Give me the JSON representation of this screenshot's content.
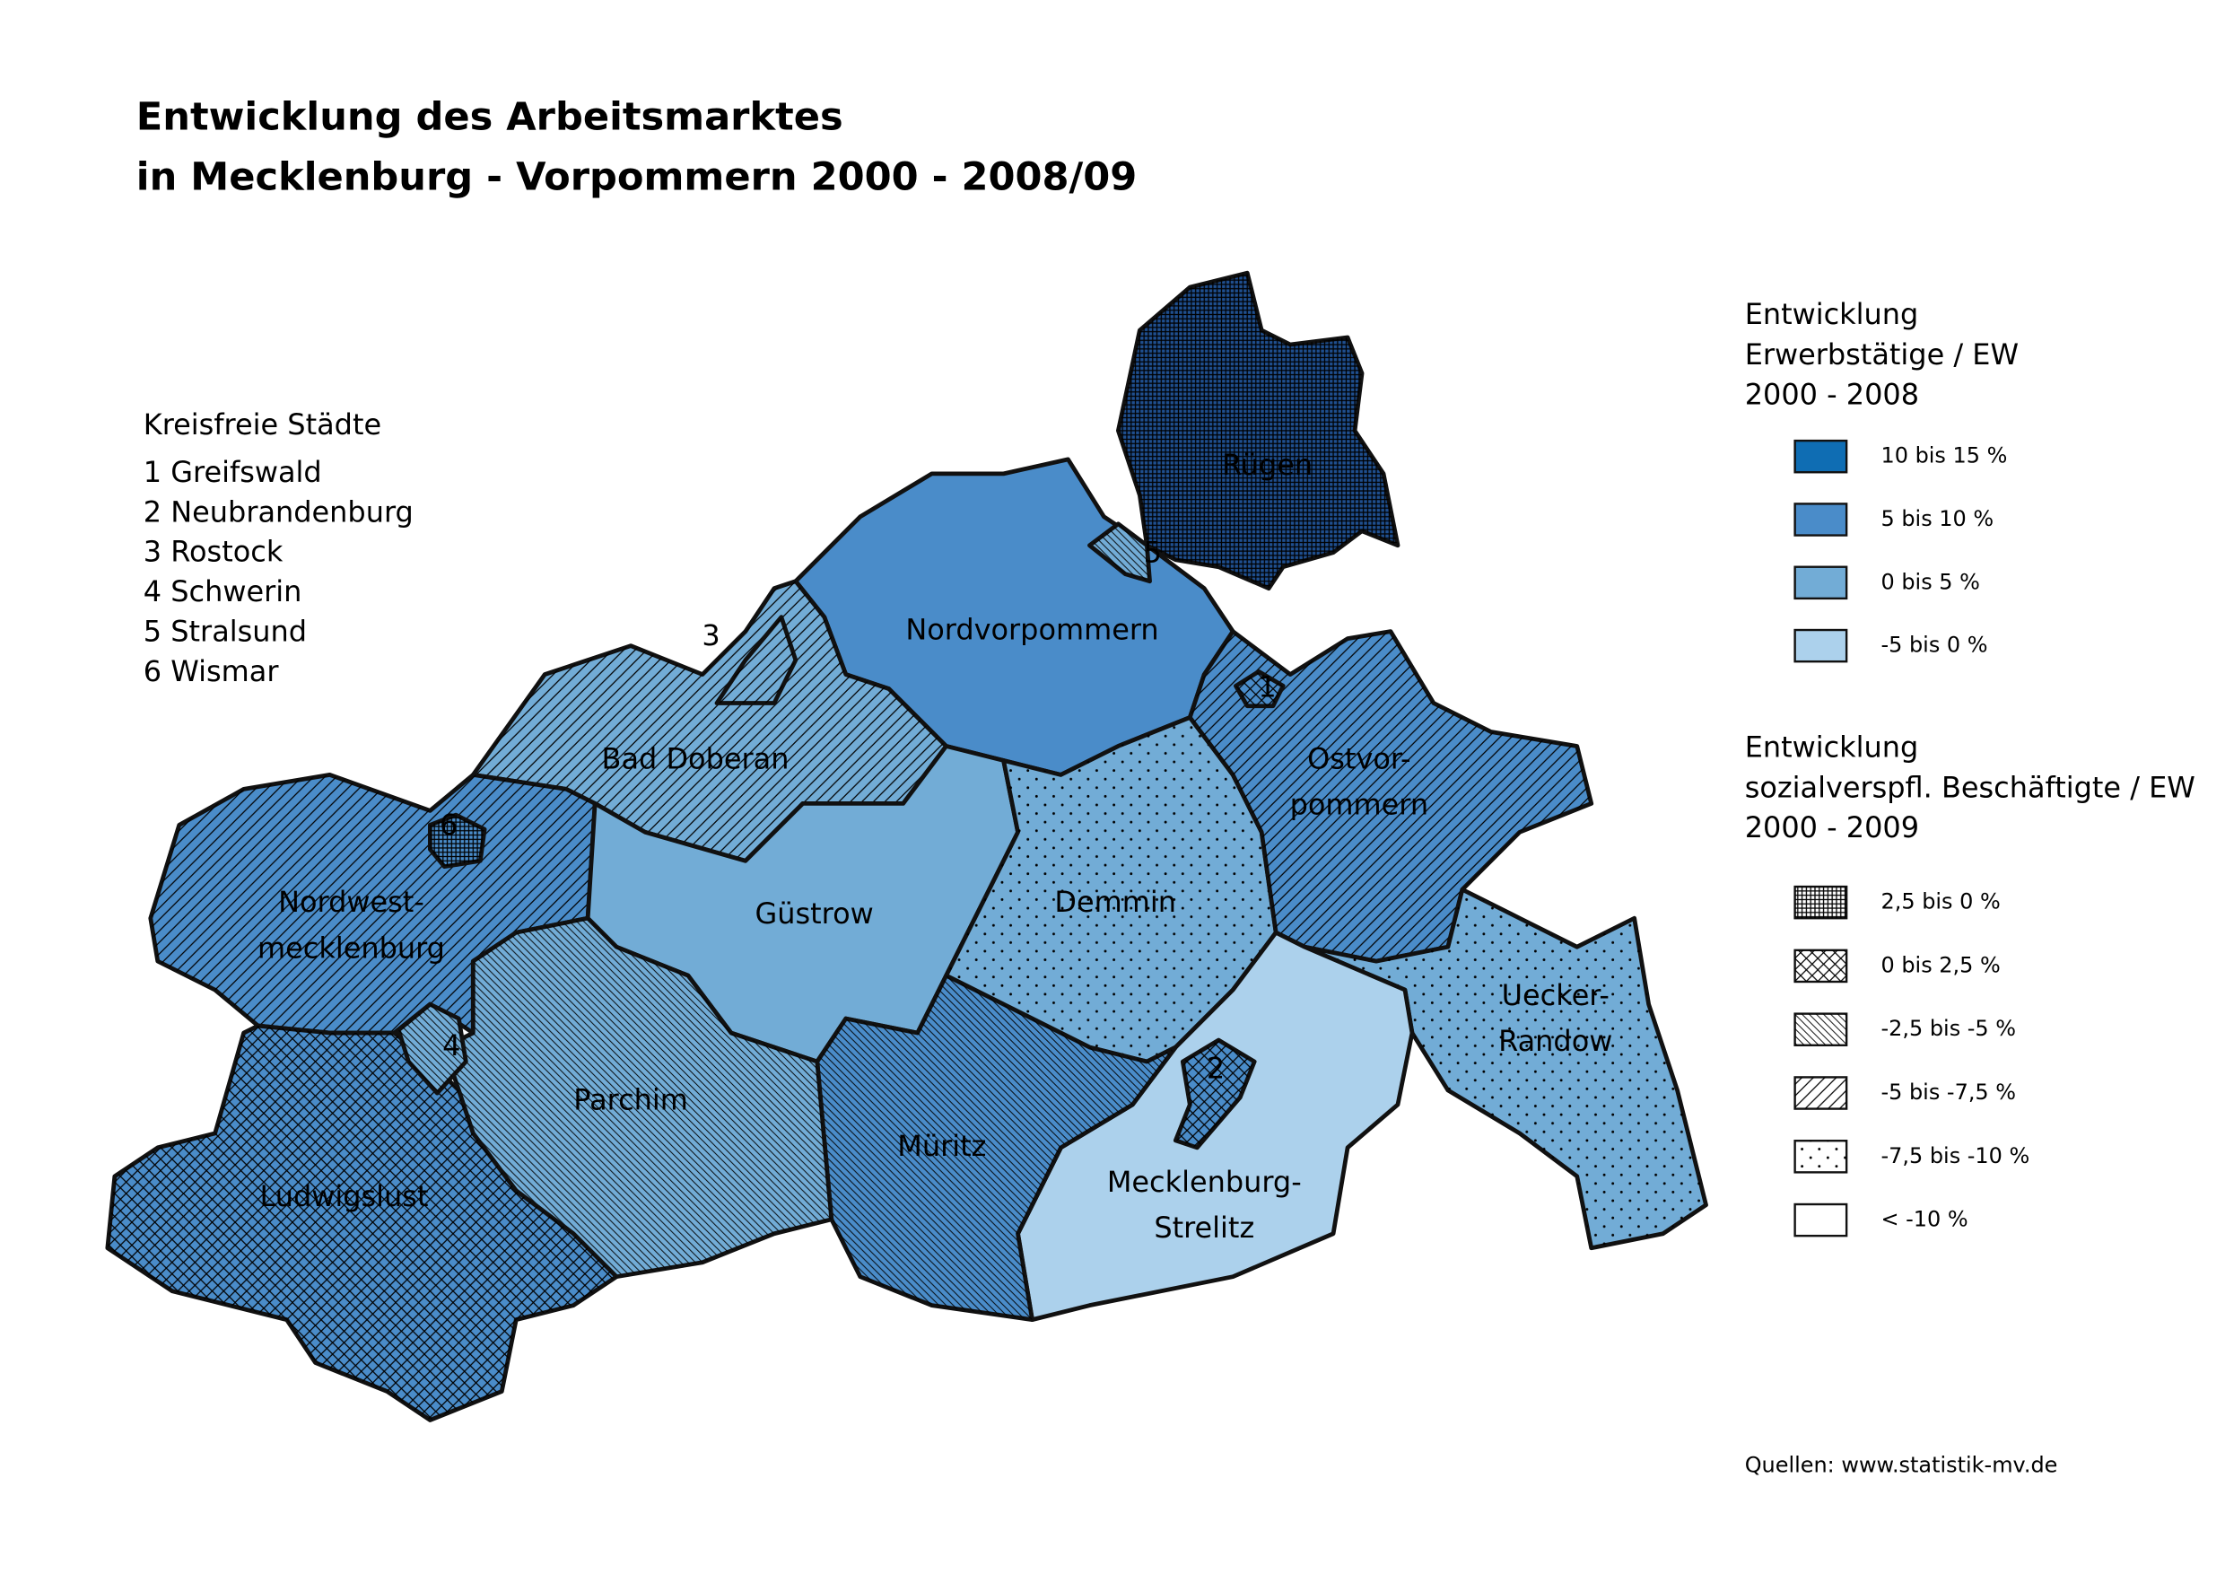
{
  "title": [
    "Entwicklung des Arbeitsmarktes",
    "in Mecklenburg - Vorpommern 2000 - 2008/09"
  ],
  "cities": {
    "heading": "Kreisfreie Städte",
    "items": [
      {
        "number": "1",
        "name": "Greifswald"
      },
      {
        "number": "2",
        "name": "Neubrandenburg"
      },
      {
        "number": "3",
        "name": "Rostock"
      },
      {
        "number": "4",
        "name": "Schwerin"
      },
      {
        "number": "5",
        "name": "Stralsund"
      },
      {
        "number": "6",
        "name": "Wismar"
      }
    ]
  },
  "legend_employed": {
    "title": [
      "Entwicklung",
      "Erwerbstätige / EW",
      "2000 - 2008"
    ],
    "items": [
      {
        "label": "10 bis 15 %",
        "color": "#0f6db3"
      },
      {
        "label": "5 bis 10 %",
        "color": "#4a8cc9"
      },
      {
        "label": "0 bis 5 %",
        "color": "#72acd6"
      },
      {
        "label": "-5 bis 0 %",
        "color": "#acd1ec"
      }
    ]
  },
  "legend_social": {
    "title": [
      "Entwicklung",
      "sozialverspfl. Beschäftigte / EW",
      "2000 - 2009"
    ],
    "items": [
      "2,5 bis 0 %",
      "0 bis 2,5 %",
      "-2,5 bis -5 %",
      "-5 bis -7,5 %",
      "-7,5 bis -10 %",
      "< -10 %"
    ]
  },
  "regions": [
    {
      "lines": [
        "Rügen"
      ]
    },
    {
      "lines": [
        "Nordvorpommern"
      ]
    },
    {
      "lines": [
        "Bad Doberan"
      ]
    },
    {
      "lines": [
        "Nordwest-",
        "mecklenburg"
      ]
    },
    {
      "lines": [
        "Güstrow"
      ]
    },
    {
      "lines": [
        "Demmin"
      ]
    },
    {
      "lines": [
        "Ostvor-",
        "pommern"
      ]
    },
    {
      "lines": [
        "Uecker-",
        "Randow"
      ]
    },
    {
      "lines": [
        "Parchim"
      ]
    },
    {
      "lines": [
        "Müritz"
      ]
    },
    {
      "lines": [
        "Mecklenburg-",
        "Strelitz"
      ]
    },
    {
      "lines": [
        "Ludwigslust"
      ]
    }
  ],
  "source": "Quellen: www.statistik-mv.de"
}
